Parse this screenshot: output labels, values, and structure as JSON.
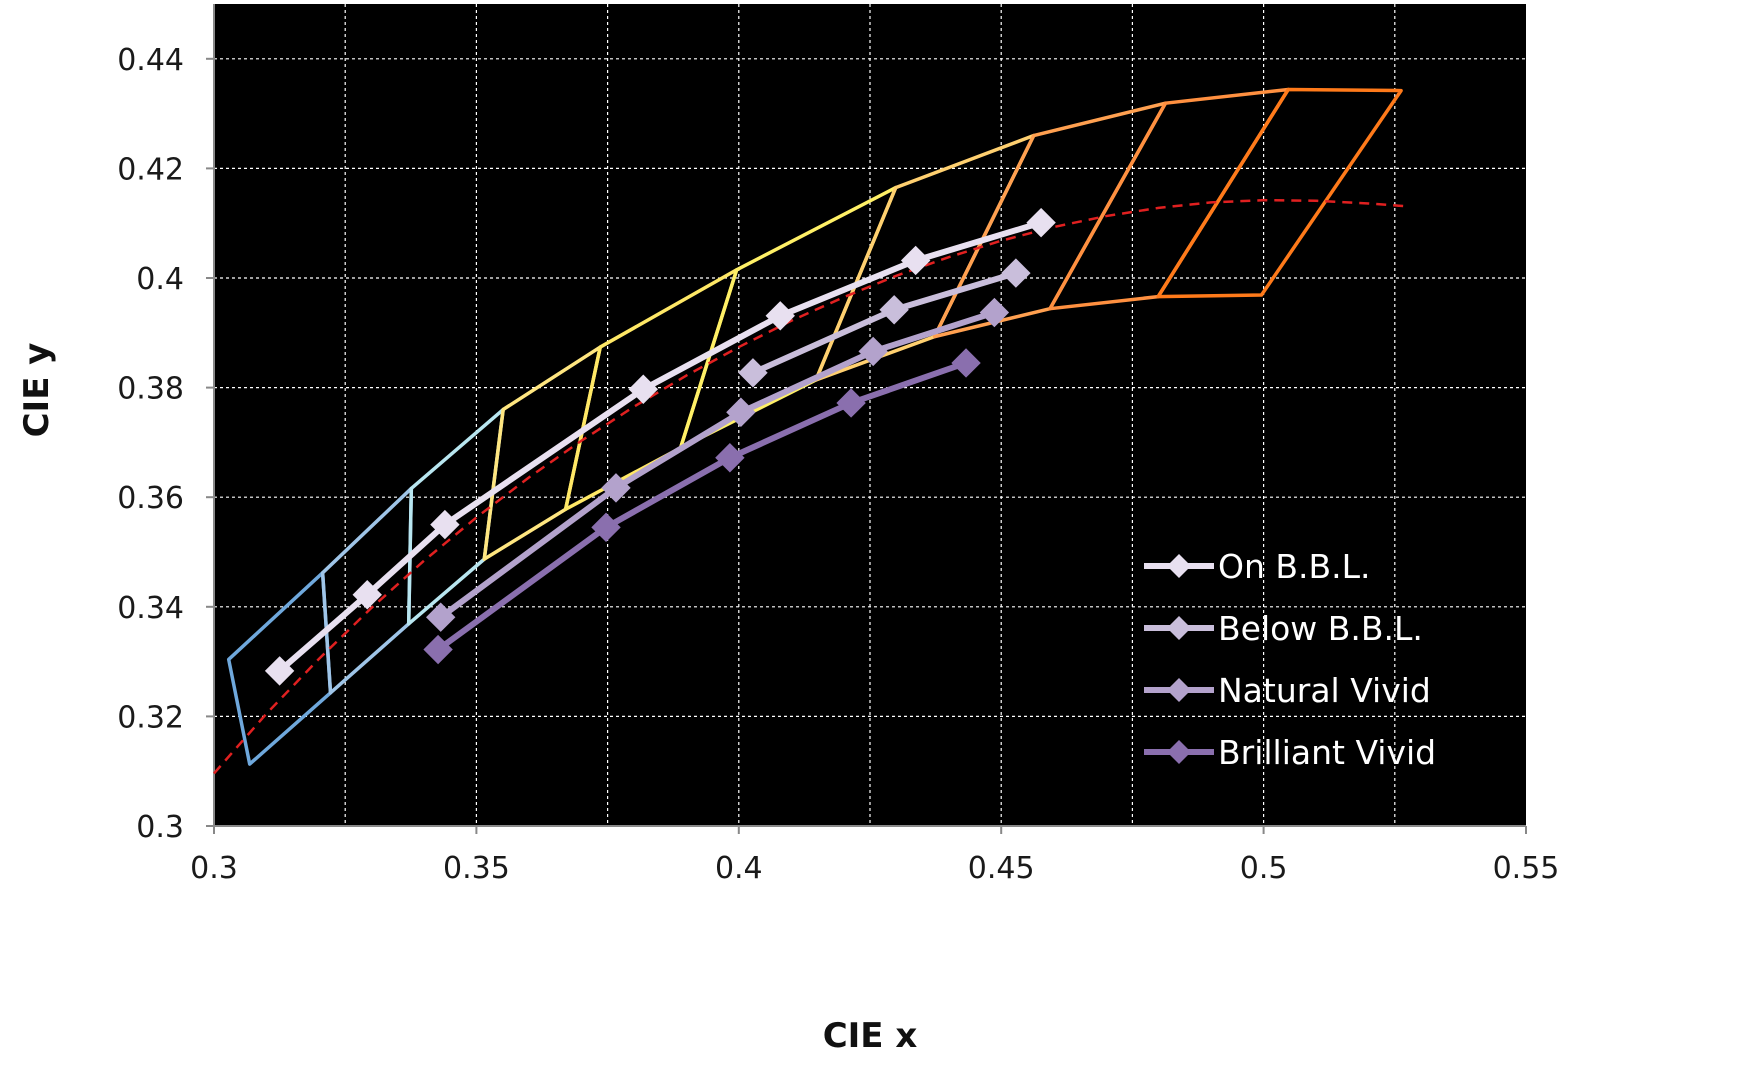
{
  "chart_data": {
    "type": "scatter",
    "title": "",
    "xlabel": "CIE x",
    "ylabel": "CIE y",
    "xlim": [
      0.3,
      0.55
    ],
    "ylim": [
      0.3,
      0.45
    ],
    "xticks": [
      0.3,
      0.35,
      0.4,
      0.45,
      0.5,
      0.55
    ],
    "yticks": [
      0.3,
      0.32,
      0.34,
      0.36,
      0.38,
      0.4,
      0.42,
      0.44
    ],
    "xtick_labels": [
      "0.3",
      "0.35",
      "0.4",
      "0.45",
      "0.5",
      "0.55"
    ],
    "ytick_labels": [
      "0.3",
      "0.32",
      "0.34",
      "0.36",
      "0.38",
      "0.4",
      "0.42",
      "0.44"
    ],
    "grid": true,
    "plot_background": "#000000",
    "legend_position": "bottom-right",
    "series": [
      {
        "name": "On B.B.L.",
        "color": "#e8e0f0",
        "marker": "diamond",
        "points": [
          [
            0.3125,
            0.3283
          ],
          [
            0.3292,
            0.3422
          ],
          [
            0.344,
            0.355
          ],
          [
            0.3818,
            0.3797
          ],
          [
            0.4079,
            0.3931
          ],
          [
            0.4337,
            0.4032
          ],
          [
            0.4576,
            0.4101
          ]
        ]
      },
      {
        "name": "Below B.B.L.",
        "color": "#c9bedb",
        "marker": "diamond",
        "points": [
          [
            0.4027,
            0.3827
          ],
          [
            0.4296,
            0.3942
          ],
          [
            0.4528,
            0.4009
          ]
        ]
      },
      {
        "name": "Natural Vivid",
        "color": "#b3a2cc",
        "marker": "diamond",
        "points": [
          [
            0.3432,
            0.3381
          ],
          [
            0.3766,
            0.3617
          ],
          [
            0.4004,
            0.3755
          ],
          [
            0.4256,
            0.3866
          ],
          [
            0.4487,
            0.3937
          ]
        ]
      },
      {
        "name": "Brilliant Vivid",
        "color": "#8a6fae",
        "marker": "diamond",
        "points": [
          [
            0.3427,
            0.3322
          ],
          [
            0.3747,
            0.3545
          ],
          [
            0.3983,
            0.3672
          ],
          [
            0.4214,
            0.3772
          ],
          [
            0.4433,
            0.3845
          ]
        ]
      }
    ],
    "planckian_locus": {
      "color": "#e02020",
      "style": "dashed",
      "points": [
        [
          0.3,
          0.3096
        ],
        [
          0.31,
          0.3205
        ],
        [
          0.32,
          0.3305
        ],
        [
          0.33,
          0.3398
        ],
        [
          0.34,
          0.3484
        ],
        [
          0.35,
          0.3563
        ],
        [
          0.36,
          0.3636
        ],
        [
          0.37,
          0.3703
        ],
        [
          0.38,
          0.3765
        ],
        [
          0.39,
          0.3822
        ],
        [
          0.4,
          0.3874
        ],
        [
          0.41,
          0.3922
        ],
        [
          0.42,
          0.3965
        ],
        [
          0.43,
          0.4004
        ],
        [
          0.44,
          0.4038
        ],
        [
          0.45,
          0.4068
        ],
        [
          0.46,
          0.4093
        ],
        [
          0.47,
          0.4113
        ],
        [
          0.48,
          0.4128
        ],
        [
          0.49,
          0.4138
        ],
        [
          0.5,
          0.4142
        ],
        [
          0.51,
          0.4141
        ],
        [
          0.52,
          0.4136
        ],
        [
          0.527,
          0.4131
        ]
      ]
    },
    "quadrangles": [
      {
        "color": "#6fa8dc",
        "points": [
          [
            0.3028,
            0.3304
          ],
          [
            0.3207,
            0.3462
          ],
          [
            0.3222,
            0.3243
          ],
          [
            0.3068,
            0.3113
          ]
        ]
      },
      {
        "color": "#9fc5e8",
        "points": [
          [
            0.3207,
            0.3462
          ],
          [
            0.3376,
            0.3616
          ],
          [
            0.3371,
            0.3369
          ],
          [
            0.3222,
            0.3243
          ]
        ]
      },
      {
        "color": "#b8e6f0",
        "points": [
          [
            0.3376,
            0.3616
          ],
          [
            0.3551,
            0.376
          ],
          [
            0.3515,
            0.3487
          ],
          [
            0.3371,
            0.3369
          ]
        ]
      },
      {
        "color": "#ffe680",
        "points": [
          [
            0.3551,
            0.376
          ],
          [
            0.3736,
            0.3874
          ],
          [
            0.367,
            0.3578
          ],
          [
            0.3515,
            0.3487
          ]
        ]
      },
      {
        "color": "#ffe866",
        "points": [
          [
            0.3736,
            0.3874
          ],
          [
            0.3996,
            0.4015
          ],
          [
            0.3889,
            0.369
          ],
          [
            0.367,
            0.3578
          ]
        ]
      },
      {
        "color": "#fff066",
        "points": [
          [
            0.3996,
            0.4015
          ],
          [
            0.4299,
            0.4165
          ],
          [
            0.4147,
            0.3814
          ],
          [
            0.3889,
            0.369
          ]
        ]
      },
      {
        "color": "#ffd070",
        "points": [
          [
            0.4299,
            0.4165
          ],
          [
            0.4562,
            0.426
          ],
          [
            0.4373,
            0.3893
          ],
          [
            0.4147,
            0.3814
          ]
        ]
      },
      {
        "color": "#ffa050",
        "points": [
          [
            0.4562,
            0.426
          ],
          [
            0.4813,
            0.4319
          ],
          [
            0.4593,
            0.3944
          ],
          [
            0.4373,
            0.3893
          ]
        ]
      },
      {
        "color": "#ff9040",
        "points": [
          [
            0.4813,
            0.4319
          ],
          [
            0.5047,
            0.4344
          ],
          [
            0.4799,
            0.3966
          ],
          [
            0.4593,
            0.3944
          ]
        ]
      },
      {
        "color": "#ff7a1a",
        "points": [
          [
            0.5047,
            0.4344
          ],
          [
            0.5262,
            0.4342
          ],
          [
            0.4996,
            0.3969
          ],
          [
            0.4799,
            0.3966
          ]
        ]
      }
    ]
  }
}
